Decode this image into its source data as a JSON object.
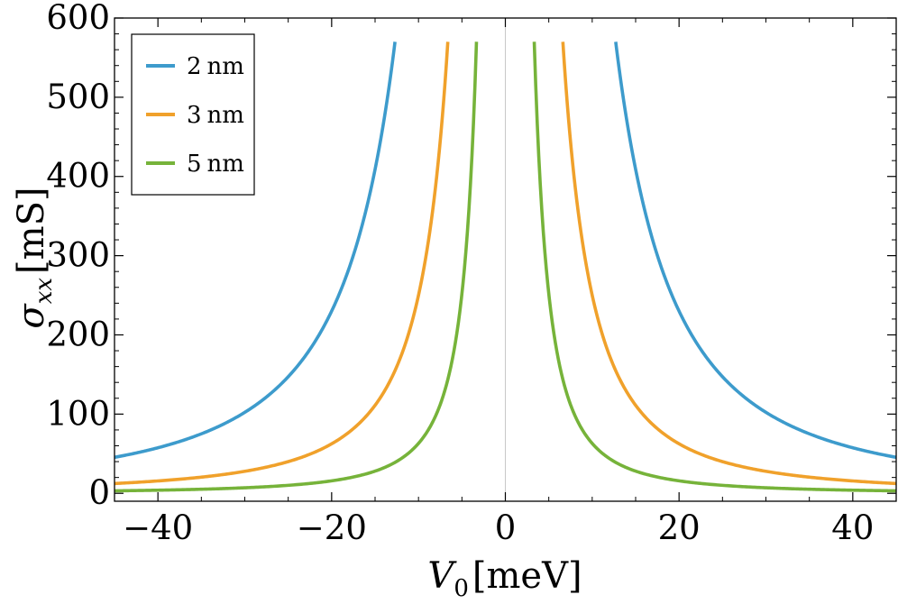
{
  "chart_data": {
    "type": "line",
    "xlabel_var": "V",
    "xlabel_sub": "0",
    "xlabel_unit": "[meV]",
    "ylabel_var": "σ",
    "ylabel_sub": "xx",
    "ylabel_unit": "[mS]",
    "xlim": [
      -45,
      45
    ],
    "ylim": [
      -10,
      600
    ],
    "xticks": [
      -40,
      -20,
      0,
      20,
      40
    ],
    "xtick_labels": [
      "−40",
      "−20",
      "0",
      "20",
      "40"
    ],
    "yticks": [
      0,
      100,
      200,
      300,
      400,
      500,
      600
    ],
    "ytick_labels": [
      "0",
      "100",
      "200",
      "300",
      "400",
      "500",
      "600"
    ],
    "grid": false,
    "zero_line": true,
    "legend_position": "top-left",
    "y_cutoff": 570,
    "series": [
      {
        "name": "2 nm",
        "label_num": "2",
        "label_unit": "nm",
        "color": "#3d9bcc",
        "coefficient": 92000,
        "description": "sigma = c / V0^2"
      },
      {
        "name": "3 nm",
        "label_num": "3",
        "label_unit": "nm",
        "color": "#f0a12b",
        "coefficient": 25000,
        "description": "sigma = c / V0^2"
      },
      {
        "name": "5 nm",
        "label_num": "5",
        "label_unit": "nm",
        "color": "#76b33a",
        "coefficient": 6300,
        "description": "sigma = c / V0^2"
      }
    ]
  }
}
